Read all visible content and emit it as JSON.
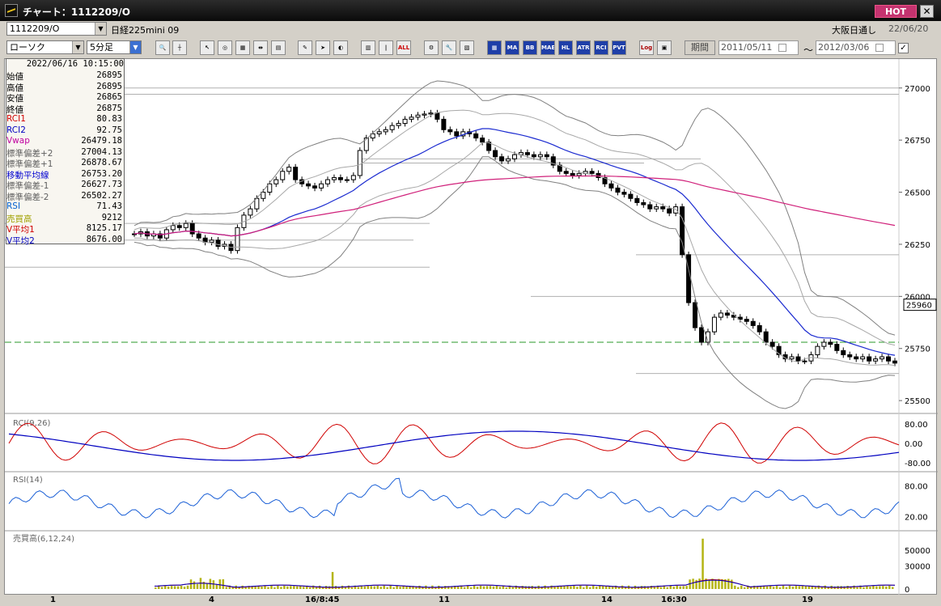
{
  "window": {
    "title": "チャート：1112209/O",
    "hot_label": "HOT",
    "close_label": "✕"
  },
  "symbol_bar": {
    "code": "1112209/O",
    "name": "日経225mini 09",
    "session": "大阪日通し",
    "date": "22/06/20"
  },
  "toolbar": {
    "chart_type": "ローソク",
    "interval": "5分足",
    "buttons": [
      "MA",
      "BB",
      "MAE",
      "HL",
      "ATR",
      "RCI",
      "PVT",
      "Log",
      "ALL"
    ],
    "period_label": "期間",
    "date_from": "2011/05/11",
    "date_to": "2012/03/06",
    "tilde": "～",
    "check_mark": "✓"
  },
  "data_panel": {
    "datetime": "2022/06/16  10:15:00",
    "rows": [
      {
        "label": "始値",
        "value": "26895",
        "color": "#000000"
      },
      {
        "label": "高値",
        "value": "26895",
        "color": "#000000"
      },
      {
        "label": "安値",
        "value": "26865",
        "color": "#000000"
      },
      {
        "label": "終値",
        "value": "26875",
        "color": "#000000"
      },
      {
        "label": "RCI1",
        "value": "80.83",
        "color": "#d00000"
      },
      {
        "label": "RCI2",
        "value": "92.75",
        "color": "#0000c0"
      },
      {
        "label": "Vwap",
        "value": "26479.18",
        "color": "#c000a0"
      },
      {
        "label": "標準偏差+2",
        "value": "27004.13",
        "color": "#606060"
      },
      {
        "label": "標準偏差+1",
        "value": "26878.67",
        "color": "#606060"
      },
      {
        "label": "移動平均線",
        "value": "26753.20",
        "color": "#0000d0"
      },
      {
        "label": "標準偏差-1",
        "value": "26627.73",
        "color": "#606060"
      },
      {
        "label": "標準偏差-2",
        "value": "26502.27",
        "color": "#606060"
      },
      {
        "label": "RSI",
        "value": "71.43",
        "color": "#0060d0"
      },
      {
        "label": "売買高",
        "value": "9212",
        "color": "#a0a000"
      },
      {
        "label": "V平均1",
        "value": "8125.17",
        "color": "#d00000"
      },
      {
        "label": "V平均2",
        "value": "8676.00",
        "color": "#0000c0"
      }
    ]
  },
  "price_axis": {
    "ticks": [
      "27000",
      "26750",
      "26500",
      "26250",
      "26000",
      "25750",
      "25500"
    ],
    "current_price": "25960"
  },
  "rci_pane": {
    "title": "RCI(9,26)",
    "ticks": [
      "80.00",
      "0.00",
      "-80.00"
    ]
  },
  "rsi_pane": {
    "title": "RSI(14)",
    "ticks": [
      "80.00",
      "20.00"
    ]
  },
  "volume_pane": {
    "title": "売買高(6,12,24)",
    "ticks": [
      "50000",
      "30000",
      "0"
    ]
  },
  "x_axis": {
    "labels": [
      "1",
      "4",
      "16/8:45",
      "11",
      "14",
      "16:30",
      "19"
    ]
  },
  "colors": {
    "rci1": "#d00000",
    "rci2": "#0000c0",
    "rsi": "#1a5fd6",
    "vwap": "#d0207a",
    "ma": "#1a2ad0",
    "bands": "#808080",
    "volume": "#b4b414",
    "dashed_level": "#2a9a2a"
  },
  "chart_data": {
    "type": "candlestick",
    "symbol": "1112209/O",
    "interval": "5分足",
    "price_ylim": [
      25450,
      27100
    ],
    "price_ticks": [
      25500,
      25750,
      26000,
      26250,
      26500,
      26750,
      27000
    ],
    "current_price": 25960,
    "dashed_level": 25780,
    "close_series": [
      26300,
      26310,
      26290,
      26300,
      26280,
      26320,
      26340,
      26330,
      26350,
      26300,
      26280,
      26260,
      26270,
      26240,
      26250,
      26220,
      26330,
      26390,
      26420,
      26470,
      26500,
      26540,
      26560,
      26600,
      26620,
      26560,
      26540,
      26530,
      26520,
      26540,
      26560,
      26570,
      26560,
      26560,
      26580,
      26700,
      26760,
      26780,
      26790,
      26800,
      26820,
      26830,
      26850,
      26860,
      26870,
      26875,
      26880,
      26850,
      26800,
      26790,
      26770,
      26790,
      26780,
      26760,
      26740,
      26700,
      26670,
      26650,
      26660,
      26680,
      26690,
      26680,
      26670,
      26680,
      26670,
      26630,
      26600,
      26590,
      26580,
      26590,
      26600,
      26590,
      26570,
      26540,
      26520,
      26500,
      26490,
      26470,
      26450,
      26440,
      26420,
      26430,
      26420,
      26400,
      26430,
      26200,
      25970,
      25850,
      25780,
      25830,
      25900,
      25920,
      25910,
      25900,
      25890,
      25880,
      25860,
      25830,
      25780,
      25760,
      25720,
      25700,
      25710,
      25690,
      25690,
      25720,
      25760,
      25780,
      25770,
      25740,
      25720,
      25710,
      25700,
      25710,
      25690,
      25700,
      25710,
      25690,
      25680
    ],
    "rci_ylim": [
      -100,
      100
    ],
    "rsi_ylim": [
      0,
      100
    ],
    "volume_ylim": [
      0,
      70000
    ]
  }
}
